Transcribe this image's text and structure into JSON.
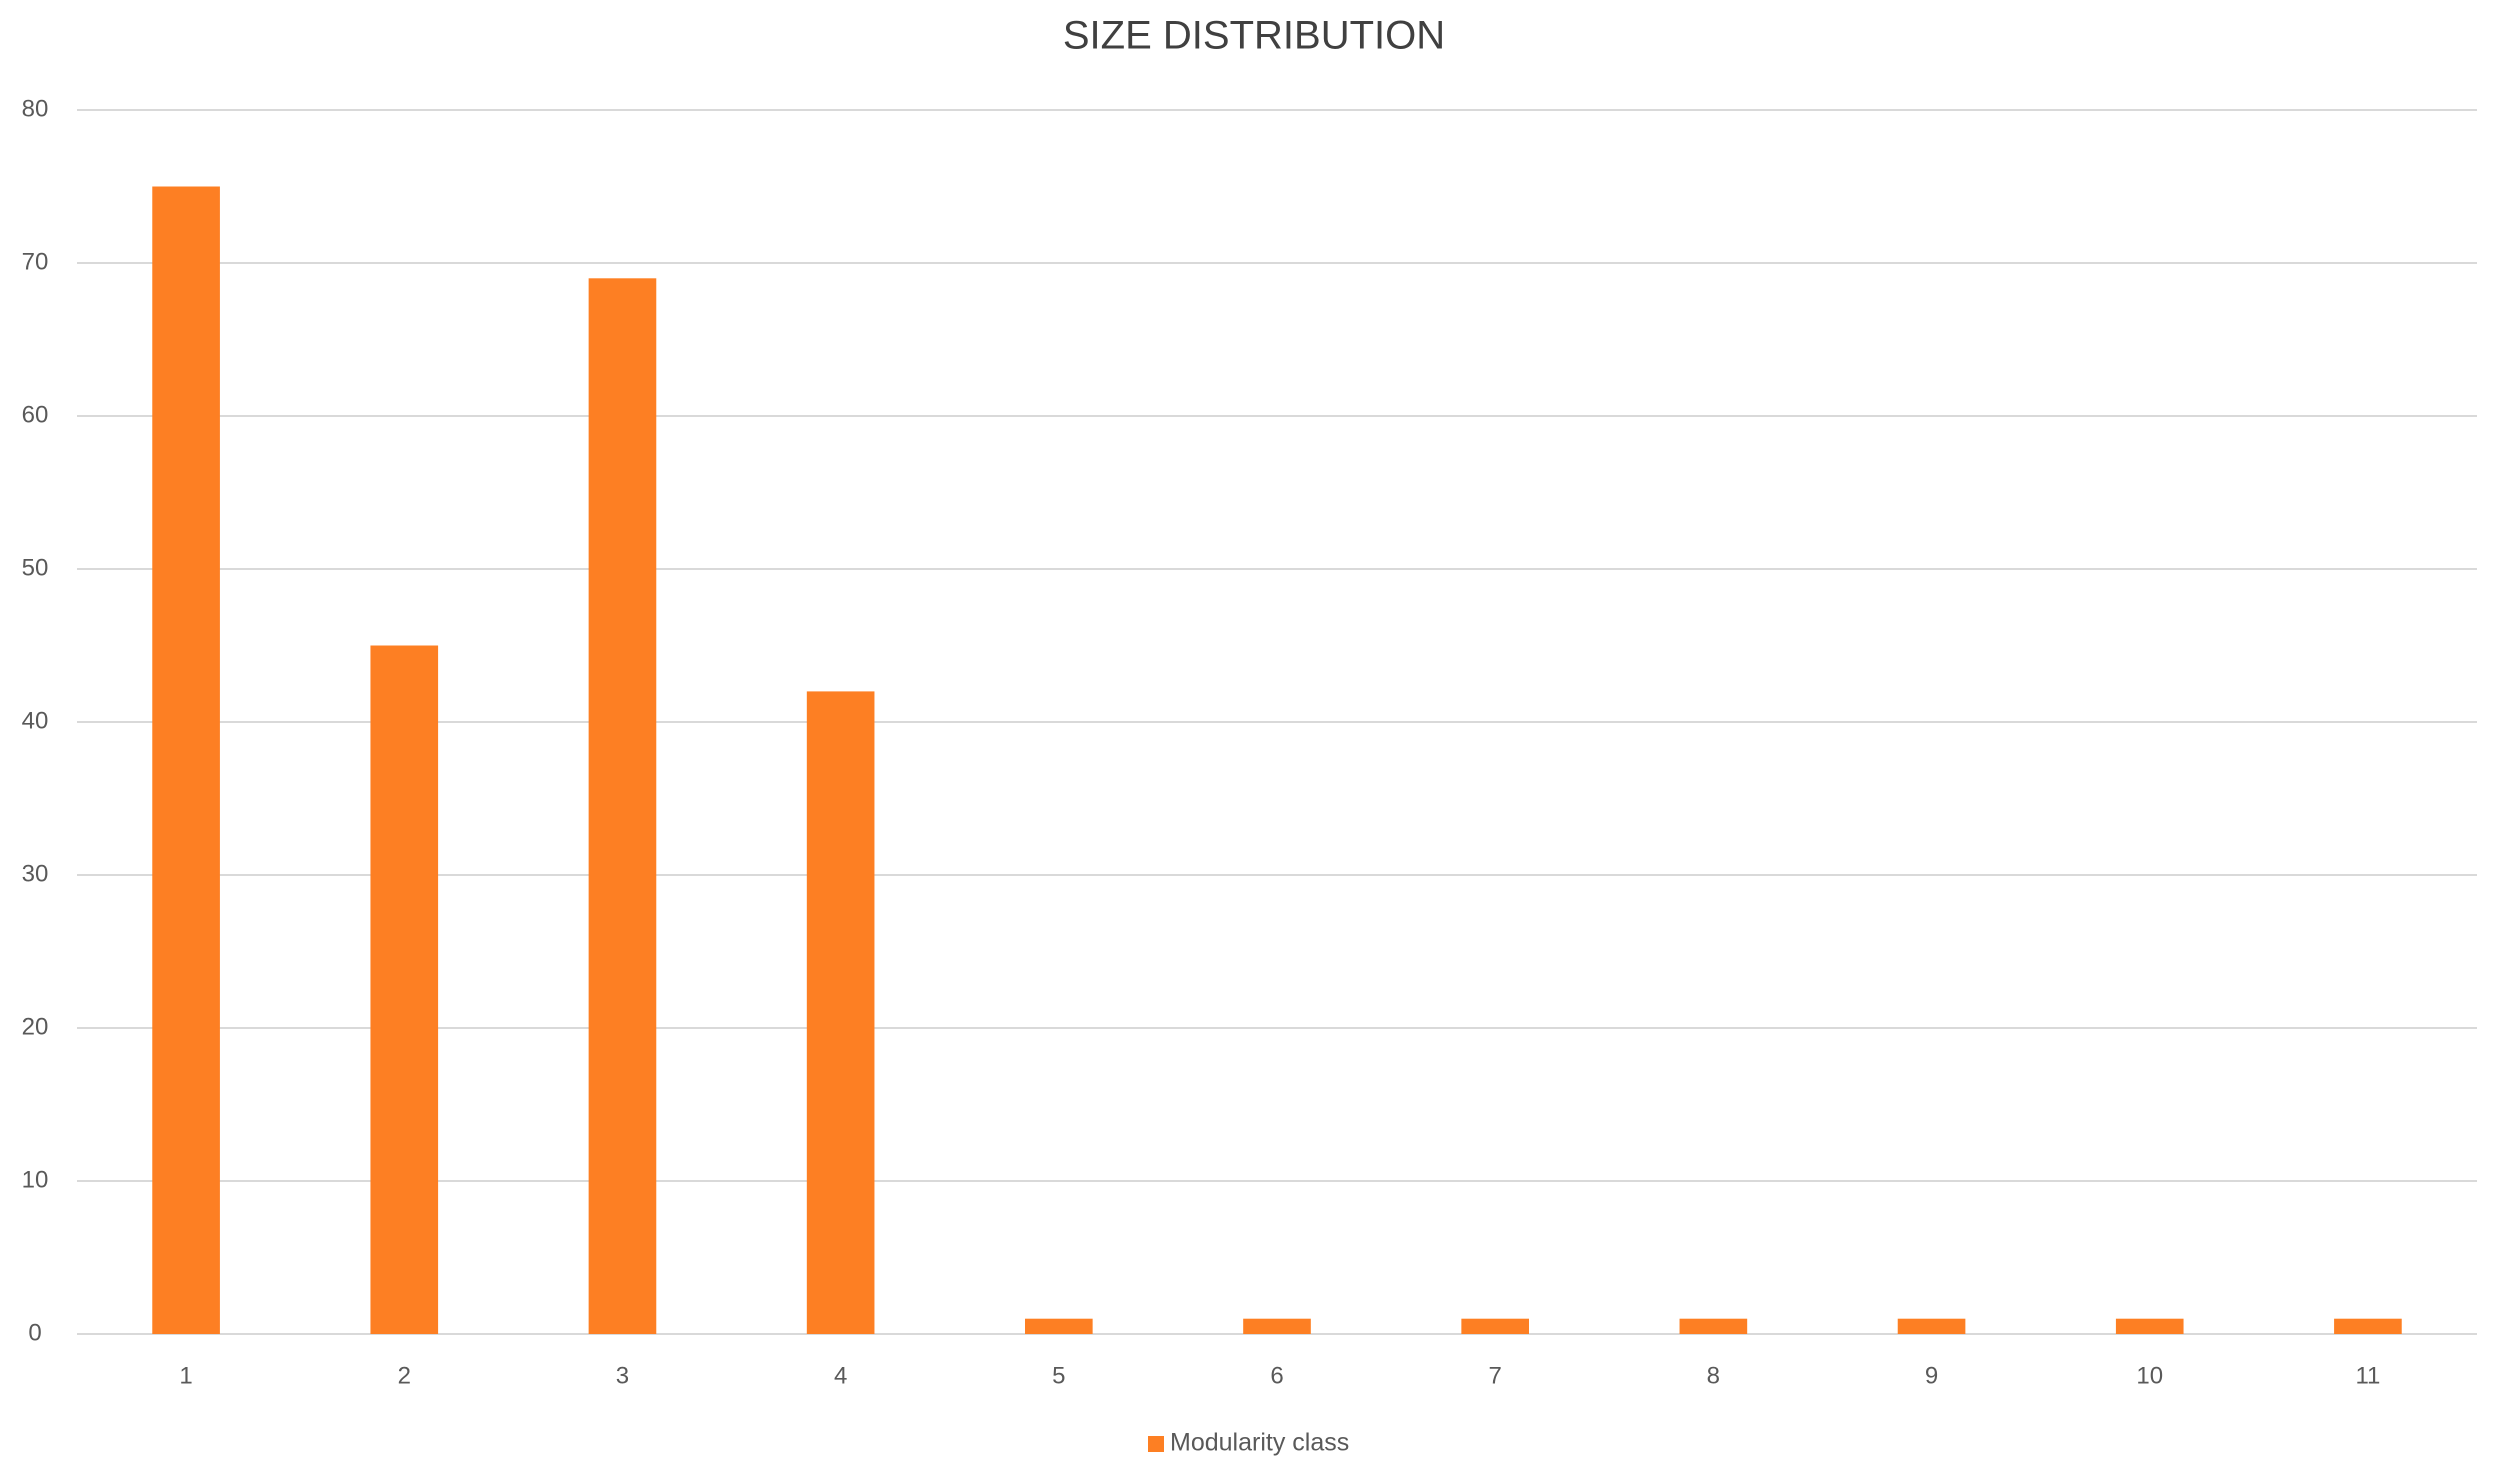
{
  "chart_data": {
    "type": "bar",
    "title": "SIZE DISTRIBUTION",
    "categories": [
      "1",
      "2",
      "3",
      "4",
      "5",
      "6",
      "7",
      "8",
      "9",
      "10",
      "11"
    ],
    "series": [
      {
        "name": "Modularity class",
        "color": "#fd7f23",
        "values": [
          75,
          45,
          69,
          42,
          1,
          1,
          1,
          1,
          1,
          1,
          1
        ]
      }
    ],
    "ylim": [
      0,
      80
    ],
    "yticks": [
      0,
      10,
      20,
      30,
      40,
      50,
      60,
      70,
      80
    ],
    "grid": true,
    "legend": "bottom"
  }
}
